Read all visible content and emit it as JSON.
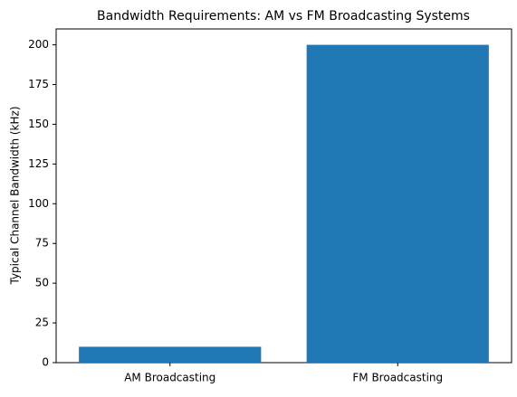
{
  "chart_data": {
    "type": "bar",
    "title": "Bandwidth Requirements: AM vs FM Broadcasting Systems",
    "y_label": "Typical Channel Bandwidth (kHz)",
    "categories": [
      "AM Broadcasting",
      "FM Broadcasting"
    ],
    "values": [
      10,
      200
    ],
    "color": "#1f77b4",
    "ylim": [
      0,
      210
    ],
    "yticks": [
      0,
      25,
      50,
      75,
      100,
      125,
      150,
      175,
      200
    ],
    "grid": false
  }
}
